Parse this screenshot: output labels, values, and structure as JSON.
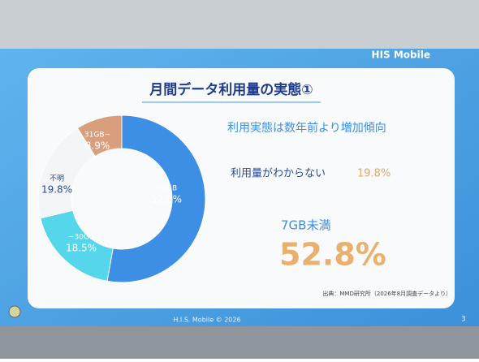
{
  "chart_data": {
    "type": "donut",
    "title": "月間データ利用量の実態①",
    "categories": [
      "~7GB",
      "~30GB",
      "不明",
      "31GB~"
    ],
    "values": [
      52.8,
      18.5,
      19.8,
      8.9
    ],
    "value_labels": [
      "52.8%",
      "18.5%",
      "19.8%",
      "8.9%"
    ],
    "colors": [
      "#3d8fe6",
      "#55d6ea",
      "#f3f5f7",
      "#d99f7c"
    ],
    "annotations": [
      "利用実態は数年前より増加傾向",
      "利用量がわからない",
      "19.8%",
      "7GB未満",
      "52.8%",
      "出典：MMD研究所（2026年8月調査データより）"
    ]
  },
  "slide": {
    "logo": "HIS Mobile",
    "footer": "H.I.S. Mobile ©  2026",
    "page": "3"
  }
}
